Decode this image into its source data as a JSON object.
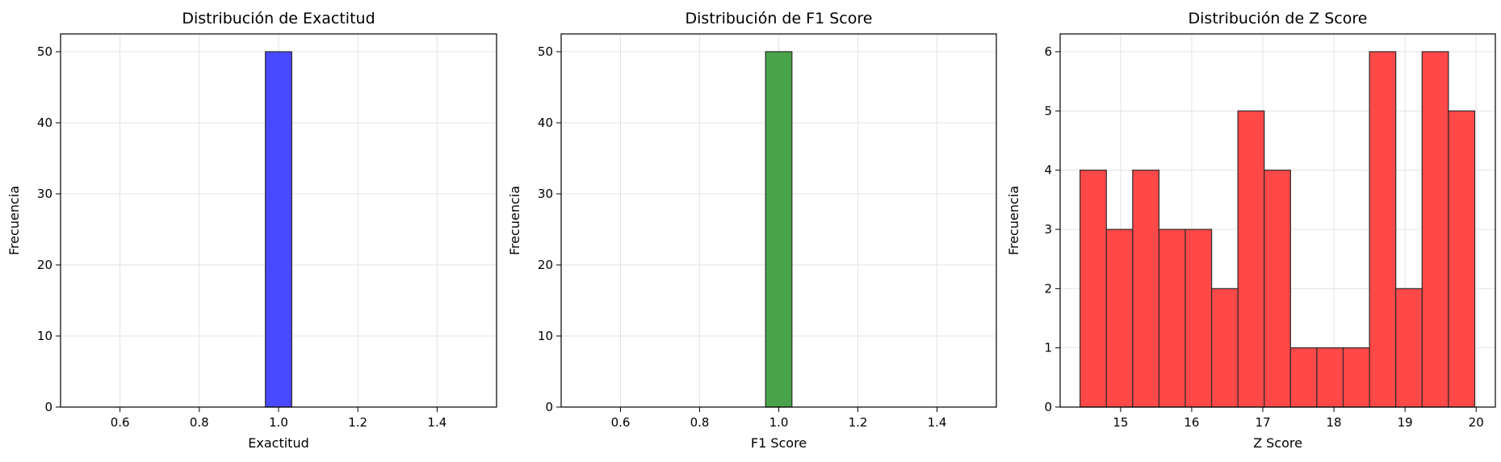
{
  "chart_data": [
    {
      "type": "bar",
      "title": "Distribución de Exactitud",
      "xlabel": "Exactitud",
      "ylabel": "Frecuencia",
      "xlim": [
        0.45,
        1.55
      ],
      "ylim": [
        0,
        52.5
      ],
      "xticks": [
        0.6,
        0.8,
        1.0,
        1.2,
        1.4
      ],
      "xtick_labels": [
        "0.6",
        "0.8",
        "1.0",
        "1.2",
        "1.4"
      ],
      "yticks": [
        0,
        10,
        20,
        30,
        40,
        50
      ],
      "ytick_labels": [
        "0",
        "10",
        "20",
        "30",
        "40",
        "50"
      ],
      "bins": [
        [
          0.5,
          0.5667
        ],
        [
          0.5667,
          0.6333
        ],
        [
          0.6333,
          0.7
        ],
        [
          0.7,
          0.7667
        ],
        [
          0.7667,
          0.8333
        ],
        [
          0.8333,
          0.9
        ],
        [
          0.9,
          0.9667
        ],
        [
          0.9667,
          1.0333
        ],
        [
          1.0333,
          1.1
        ],
        [
          1.1,
          1.1667
        ],
        [
          1.1667,
          1.2333
        ],
        [
          1.2333,
          1.3
        ],
        [
          1.3,
          1.3667
        ],
        [
          1.3667,
          1.4333
        ],
        [
          1.4333,
          1.5
        ]
      ],
      "values": [
        0,
        0,
        0,
        0,
        0,
        0,
        0,
        50,
        0,
        0,
        0,
        0,
        0,
        0,
        0
      ],
      "color": "#4949ff",
      "grid": true
    },
    {
      "type": "bar",
      "title": "Distribución de F1 Score",
      "xlabel": "F1 Score",
      "ylabel": "Frecuencia",
      "xlim": [
        0.45,
        1.55
      ],
      "ylim": [
        0,
        52.5
      ],
      "xticks": [
        0.6,
        0.8,
        1.0,
        1.2,
        1.4
      ],
      "xtick_labels": [
        "0.6",
        "0.8",
        "1.0",
        "1.2",
        "1.4"
      ],
      "yticks": [
        0,
        10,
        20,
        30,
        40,
        50
      ],
      "ytick_labels": [
        "0",
        "10",
        "20",
        "30",
        "40",
        "50"
      ],
      "bins": [
        [
          0.5,
          0.5667
        ],
        [
          0.5667,
          0.6333
        ],
        [
          0.6333,
          0.7
        ],
        [
          0.7,
          0.7667
        ],
        [
          0.7667,
          0.8333
        ],
        [
          0.8333,
          0.9
        ],
        [
          0.9,
          0.9667
        ],
        [
          0.9667,
          1.0333
        ],
        [
          1.0333,
          1.1
        ],
        [
          1.1,
          1.1667
        ],
        [
          1.1667,
          1.2333
        ],
        [
          1.2333,
          1.3
        ],
        [
          1.3,
          1.3667
        ],
        [
          1.3667,
          1.4333
        ],
        [
          1.4333,
          1.5
        ]
      ],
      "values": [
        0,
        0,
        0,
        0,
        0,
        0,
        0,
        50,
        0,
        0,
        0,
        0,
        0,
        0,
        0
      ],
      "color": "#49a349",
      "grid": true
    },
    {
      "type": "bar",
      "title": "Distribución de Z Score",
      "xlabel": "Z Score",
      "ylabel": "Frecuencia",
      "xlim": [
        14.15,
        20.27
      ],
      "ylim": [
        0,
        6.3
      ],
      "xticks": [
        15,
        16,
        17,
        18,
        19,
        20
      ],
      "xtick_labels": [
        "15",
        "16",
        "17",
        "18",
        "19",
        "20"
      ],
      "yticks": [
        0,
        1,
        2,
        3,
        4,
        5,
        6
      ],
      "ytick_labels": [
        "0",
        "1",
        "2",
        "3",
        "4",
        "5",
        "6"
      ],
      "bins": [
        [
          14.43,
          14.8
        ],
        [
          14.8,
          15.17
        ],
        [
          15.17,
          15.54
        ],
        [
          15.54,
          15.91
        ],
        [
          15.91,
          16.28
        ],
        [
          16.28,
          16.65
        ],
        [
          16.65,
          17.02
        ],
        [
          17.02,
          17.39
        ],
        [
          17.39,
          17.76
        ],
        [
          17.76,
          18.13
        ],
        [
          18.13,
          18.5
        ],
        [
          18.5,
          18.87
        ],
        [
          18.87,
          19.24
        ],
        [
          19.24,
          19.61
        ],
        [
          19.61,
          19.98
        ]
      ],
      "values": [
        4,
        3,
        4,
        3,
        3,
        2,
        5,
        4,
        1,
        1,
        1,
        6,
        2,
        6,
        5
      ],
      "color": "#ff4848",
      "grid": true
    }
  ]
}
